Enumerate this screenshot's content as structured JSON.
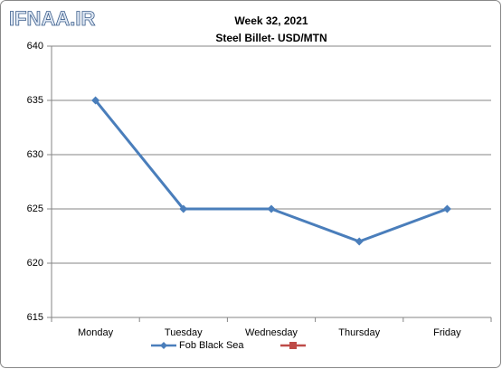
{
  "watermark": "IFNAA.IR",
  "chart_data": {
    "type": "line",
    "title": "Week 32, 2021",
    "subtitle": "Steel Billet- USD/MTN",
    "categories": [
      "Monday",
      "Tuesday",
      "Wednesday",
      "Thursday",
      "Friday"
    ],
    "series": [
      {
        "name": "Fob Black Sea",
        "color": "#4a7ebb",
        "values": [
          635,
          625,
          625,
          622,
          625
        ]
      }
    ],
    "ylim": [
      615,
      640
    ],
    "yticks": [
      615,
      620,
      625,
      630,
      635,
      640
    ],
    "grid": true
  }
}
